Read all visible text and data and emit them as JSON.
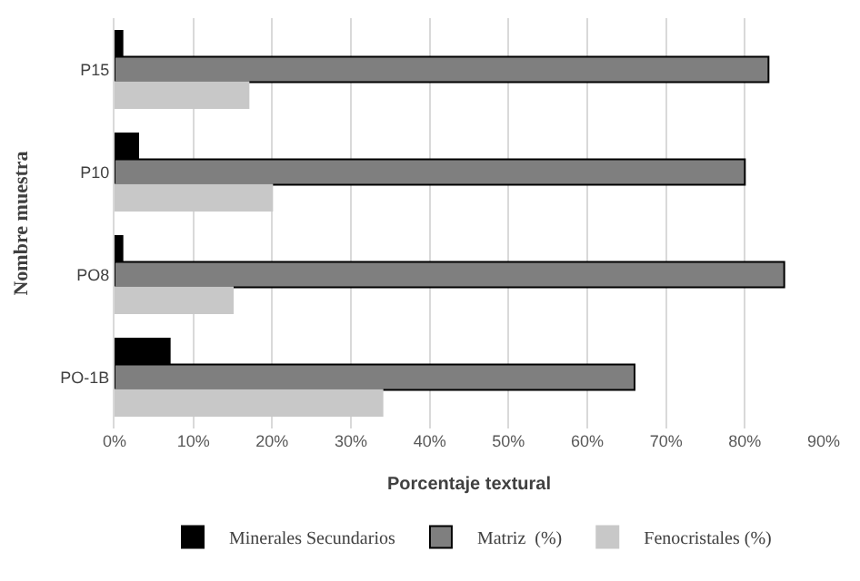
{
  "chart_data": {
    "type": "bar",
    "orientation": "horizontal",
    "xlabel": "Porcentaje textural",
    "ylabel": "Nombre muestra",
    "categories": [
      "P15",
      "P10",
      "PO8",
      "PO-1B"
    ],
    "series": [
      {
        "name": "Minerales Secundarios",
        "color": "#000000",
        "values": [
          1,
          3,
          1,
          7
        ]
      },
      {
        "name": "Matriz  (%)",
        "color": "#7f7f7f",
        "values": [
          83,
          80,
          85,
          66
        ]
      },
      {
        "name": "Fenocristales (%)",
        "color": "#c8c8c8",
        "values": [
          17,
          20,
          15,
          34
        ]
      }
    ],
    "xlim": [
      0,
      90
    ],
    "xticks": [
      {
        "value": 0,
        "label": "0%"
      },
      {
        "value": 10,
        "label": "10%"
      },
      {
        "value": 20,
        "label": "20%"
      },
      {
        "value": 30,
        "label": "30%"
      },
      {
        "value": 40,
        "label": "40%"
      },
      {
        "value": 50,
        "label": "50%"
      },
      {
        "value": 60,
        "label": "60%"
      },
      {
        "value": 70,
        "label": "70%"
      },
      {
        "value": 80,
        "label": "80%"
      },
      {
        "value": 90,
        "label": "90%"
      }
    ],
    "grid": "x",
    "legend": "bottom"
  }
}
